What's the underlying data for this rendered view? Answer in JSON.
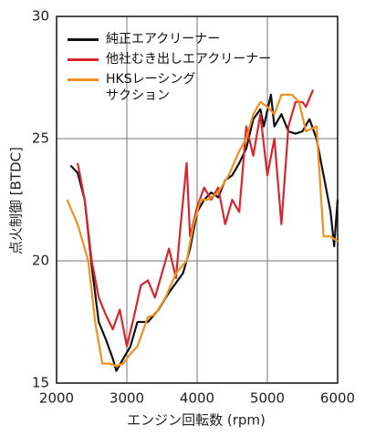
{
  "chart_data": {
    "type": "line",
    "xlabel": "エンジン回転数 (rpm)",
    "ylabel": "点火制御 [BTDC]",
    "xlim": [
      2000,
      6000
    ],
    "xticks": [
      2000,
      3000,
      4000,
      5000,
      6000
    ],
    "ylim": [
      15,
      30
    ],
    "yticks": [
      15,
      20,
      25,
      30
    ],
    "grid": true,
    "legend": "upper left",
    "series": [
      {
        "name": "純正エアクリーナー",
        "color": "#111111",
        "x": [
          2200,
          2300,
          2400,
          2500,
          2600,
          2700,
          2800,
          2850,
          2950,
          3050,
          3150,
          3300,
          3450,
          3600,
          3800,
          3900,
          4000,
          4100,
          4200,
          4300,
          4400,
          4500,
          4600,
          4700,
          4800,
          4900,
          4950,
          5050,
          5100,
          5200,
          5300,
          5400,
          5500,
          5600,
          5700,
          5800,
          5900,
          5950,
          6000
        ],
        "values": [
          23.9,
          23.6,
          22.5,
          19.8,
          17.5,
          16.8,
          16,
          15.5,
          16,
          16.5,
          17.5,
          17.5,
          18,
          18.7,
          19.5,
          20.5,
          22,
          22.5,
          22.8,
          22.6,
          23.3,
          23.5,
          24,
          24.6,
          25.8,
          26.2,
          25.5,
          26.8,
          25.5,
          26,
          25.3,
          25.2,
          25.3,
          25.8,
          25,
          23.5,
          22,
          20.6,
          22.5
        ]
      },
      {
        "name": "他社むき出しエアクリーナー",
        "color": "#d7262e",
        "x": [
          2300,
          2400,
          2500,
          2600,
          2700,
          2800,
          2900,
          3000,
          3100,
          3200,
          3300,
          3400,
          3500,
          3600,
          3700,
          3750,
          3850,
          3900,
          4000,
          4100,
          4200,
          4300,
          4400,
          4500,
          4600,
          4700,
          4800,
          4900,
          5000,
          5100,
          5200,
          5300,
          5400,
          5500,
          5550,
          5650
        ],
        "values": [
          24,
          22.5,
          20,
          18.5,
          17.8,
          17.2,
          18,
          16.5,
          17.7,
          19,
          19.2,
          18.5,
          19.5,
          20.5,
          19.3,
          21,
          24,
          21,
          22.2,
          23,
          22.5,
          23,
          21.5,
          22.5,
          22,
          25.5,
          24.3,
          26,
          23.5,
          25,
          21.5,
          25.5,
          26.5,
          26.5,
          26.3,
          27
        ]
      },
      {
        "name": "HKSレーシング\nサクション",
        "color": "#f0901e",
        "x": [
          2150,
          2300,
          2450,
          2550,
          2650,
          2750,
          2850,
          2950,
          3050,
          3150,
          3300,
          3400,
          3550,
          3700,
          3850,
          3950,
          4050,
          4150,
          4300,
          4450,
          4600,
          4700,
          4800,
          4900,
          5000,
          5100,
          5200,
          5350,
          5450,
          5550,
          5700,
          5800,
          5900,
          6000
        ],
        "values": [
          22.5,
          21.5,
          20,
          17.5,
          15.8,
          15.8,
          15.7,
          15.8,
          16.2,
          16.5,
          17.7,
          17.8,
          18.5,
          19.5,
          20,
          21.5,
          22.5,
          22.5,
          22.8,
          23.5,
          24.5,
          25,
          26,
          26.5,
          26.3,
          26,
          26.8,
          26.8,
          26.5,
          25.3,
          25.5,
          21,
          21,
          20.8
        ]
      }
    ]
  }
}
